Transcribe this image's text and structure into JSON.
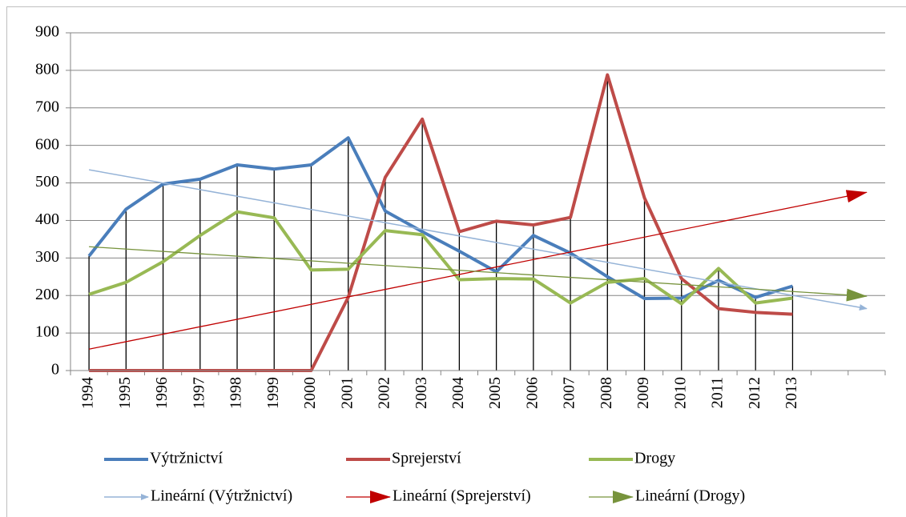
{
  "chart_data": {
    "type": "line",
    "categories": [
      "1994",
      "1995",
      "1996",
      "1997",
      "1998",
      "1999",
      "2000",
      "2001",
      "2002",
      "2003",
      "2004",
      "2005",
      "2006",
      "2007",
      "2008",
      "2009",
      "2010",
      "2011",
      "2012",
      "2013",
      null,
      null
    ],
    "series": [
      {
        "name": "Výtržnictví",
        "color": "#4a7ebb",
        "values": [
          305,
          430,
          497,
          510,
          548,
          537,
          548,
          620,
          425,
          370,
          318,
          263,
          360,
          313,
          250,
          192,
          193,
          240,
          195,
          225,
          null,
          null
        ]
      },
      {
        "name": "Sprejerství",
        "color": "#be4b48",
        "values": [
          0,
          0,
          0,
          0,
          0,
          0,
          0,
          195,
          515,
          670,
          370,
          398,
          388,
          408,
          788,
          460,
          245,
          165,
          155,
          150,
          null,
          null
        ]
      },
      {
        "name": "Drogy",
        "color": "#98b954",
        "values": [
          203,
          235,
          290,
          360,
          423,
          407,
          268,
          270,
          373,
          362,
          242,
          245,
          244,
          180,
          235,
          245,
          178,
          272,
          180,
          193,
          null,
          null
        ]
      }
    ],
    "trendlines": [
      {
        "name": "Lineární (Výtržnictví)",
        "color": "#95b3d7",
        "values": [
          535,
          165
        ]
      },
      {
        "name": "Lineární (Sprejerství)",
        "color": "#c00000",
        "values": [
          57,
          475
        ]
      },
      {
        "name": "Lineární (Drogy)",
        "color": "#77933c",
        "values": [
          330,
          198
        ]
      }
    ],
    "ylim": [
      0,
      900
    ],
    "yticks": [
      0,
      100,
      200,
      300,
      400,
      500,
      600,
      700,
      800,
      900
    ],
    "grid": true,
    "drop_lines": true,
    "legend": "bottom"
  }
}
